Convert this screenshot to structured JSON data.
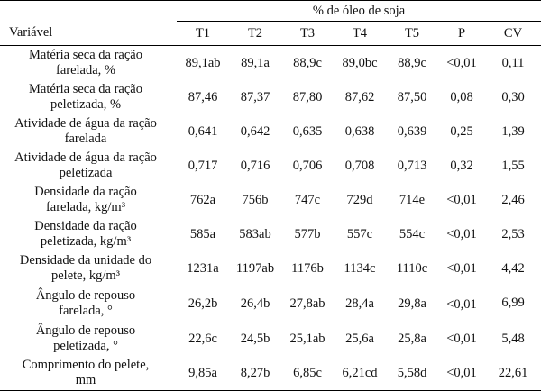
{
  "header": {
    "group_label": "% de óleo de soja",
    "variable_label": "Variável",
    "columns": [
      "T1",
      "T2",
      "T3",
      "T4",
      "T5",
      "P",
      "CV"
    ]
  },
  "rows": [
    {
      "label": [
        "Matéria seca da ração",
        "farelada, %"
      ],
      "values": [
        "89,1ab",
        "89,1a",
        "88,9c",
        "89,0bc",
        "88,9c",
        "<0,01",
        "0,11"
      ]
    },
    {
      "label": [
        "Matéria seca da ração",
        "peletizada, %"
      ],
      "values": [
        "87,46",
        "87,37",
        "87,80",
        "87,62",
        "87,50",
        "0,08",
        "0,30"
      ]
    },
    {
      "label": [
        "Atividade de água da ração",
        "farelada"
      ],
      "values": [
        "0,641",
        "0,642",
        "0,635",
        "0,638",
        "0,639",
        "0,25",
        "1,39"
      ]
    },
    {
      "label": [
        "Atividade de água da ração",
        "peletizada"
      ],
      "values": [
        "0,717",
        "0,716",
        "0,706",
        "0,708",
        "0,713",
        "0,32",
        "1,55"
      ]
    },
    {
      "label": [
        "Densidade da ração",
        "farelada, kg/m³"
      ],
      "values": [
        "762a",
        "756b",
        "747c",
        "729d",
        "714e",
        "<0,01",
        "2,46"
      ]
    },
    {
      "label": [
        "Densidade da ração",
        "peletizada, kg/m³"
      ],
      "values": [
        "585a",
        "583ab",
        "577b",
        "557c",
        "554c",
        "<0,01",
        "2,53"
      ]
    },
    {
      "label": [
        "Densidade da unidade do",
        "pelete, kg/m³"
      ],
      "values": [
        "1231a",
        "1197ab",
        "1176b",
        "1134c",
        "1110c",
        "<0,01",
        "4,42"
      ]
    },
    {
      "label": [
        "Ângulo de repouso",
        "farelada, °"
      ],
      "values": [
        "26,2b",
        "26,4b",
        "27,8ab",
        "28,4a",
        "29,8a",
        "<0,01",
        "6,99"
      ]
    },
    {
      "label": [
        "Ângulo de repouso",
        "peletizada, °"
      ],
      "values": [
        "22,6c",
        "24,5b",
        "25,1ab",
        "25,6a",
        "25,8a",
        "<0,01",
        "5,48"
      ]
    },
    {
      "label": [
        "Comprimento do pelete,",
        "mm"
      ],
      "values": [
        "9,85a",
        "8,27b",
        "6,85c",
        "6,21cd",
        "5,58d",
        "<0,01",
        "22,61"
      ]
    }
  ]
}
